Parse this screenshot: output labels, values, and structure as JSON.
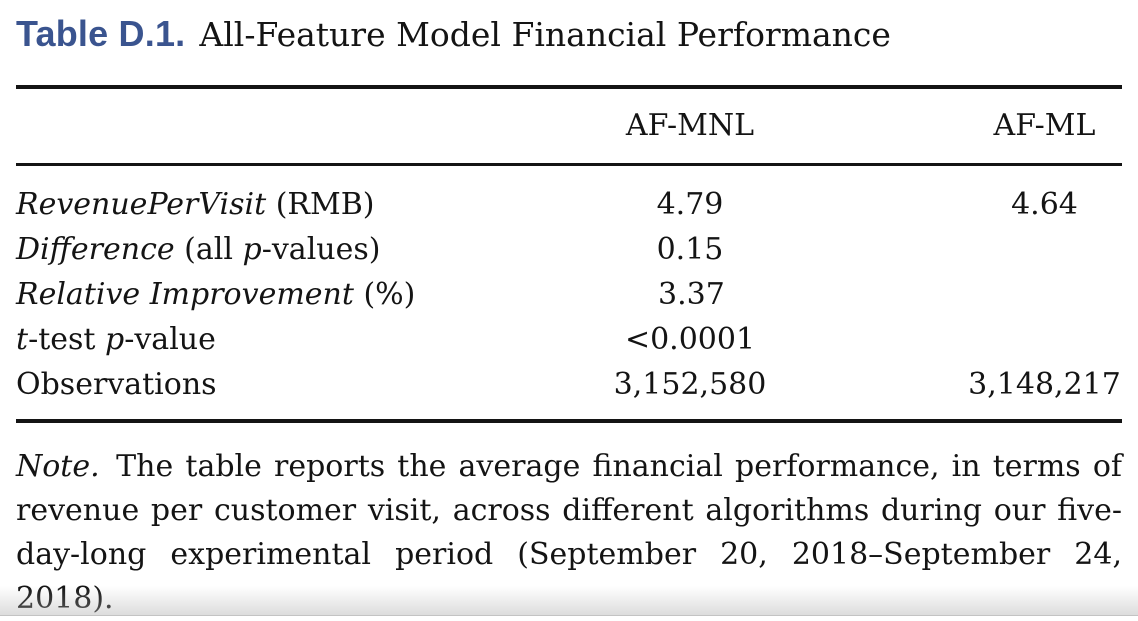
{
  "title": {
    "tag": "Table D.1.",
    "text": "All-Feature Model Financial Performance"
  },
  "table": {
    "columns": [
      "AF-MNL",
      "AF-ML"
    ],
    "rows": [
      {
        "label_parts": [
          {
            "t": "RevenuePerVisit",
            "i": true
          },
          {
            "t": " (RMB)",
            "i": false
          }
        ],
        "values": [
          "4.79",
          "4.64"
        ]
      },
      {
        "label_parts": [
          {
            "t": "Difference",
            "i": true
          },
          {
            "t": " (all ",
            "i": false
          },
          {
            "t": "p",
            "i": true
          },
          {
            "t": "-values)",
            "i": false
          }
        ],
        "values": [
          "0.15",
          ""
        ]
      },
      {
        "label_parts": [
          {
            "t": "Relative Improvement",
            "i": true
          },
          {
            "t": " (%)",
            "i": false
          }
        ],
        "values": [
          "3.37",
          ""
        ]
      },
      {
        "label_parts": [
          {
            "t": "t",
            "i": true
          },
          {
            "t": "-test ",
            "i": false
          },
          {
            "t": "p",
            "i": true
          },
          {
            "t": "-value",
            "i": false
          }
        ],
        "values": [
          "<0.0001",
          ""
        ]
      },
      {
        "label_parts": [
          {
            "t": "Observations",
            "i": false
          }
        ],
        "values": [
          "3,152,580",
          "3,148,217"
        ]
      }
    ]
  },
  "note": {
    "prefix": "Note.",
    "text": "The table reports the average financial performance, in terms of revenue per customer visit, across different algorithms during our five-day-long experimental period (September 20, 2018–September 24, 2018)."
  },
  "colors": {
    "accent_blue": "#3a548f",
    "rule_black": "#141414",
    "background": "#ffffff"
  }
}
